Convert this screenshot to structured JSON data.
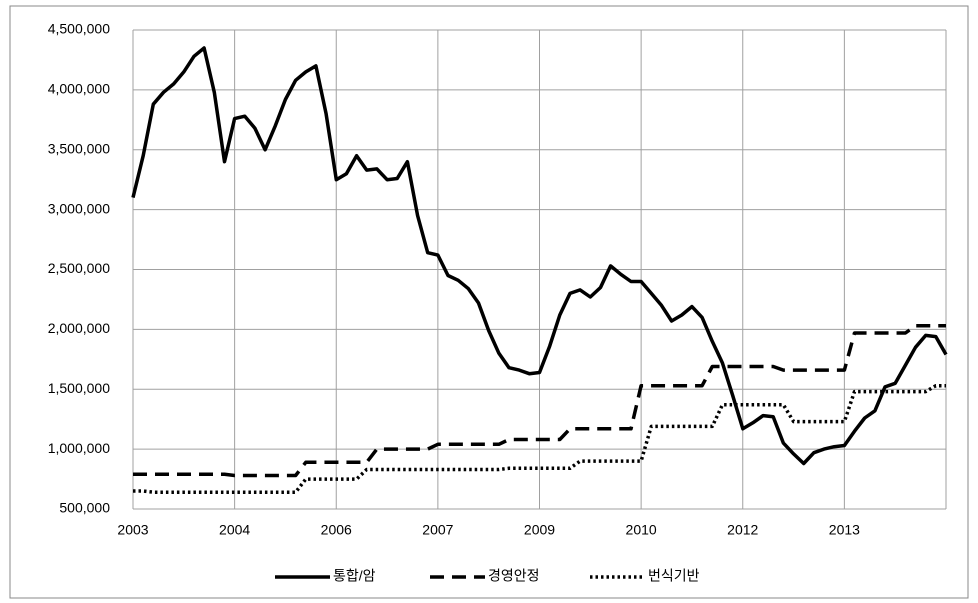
{
  "chart_data": {
    "type": "line",
    "categories": [
      "2003",
      null,
      null,
      null,
      null,
      null,
      null,
      null,
      null,
      null,
      "2004",
      null,
      null,
      null,
      null,
      null,
      null,
      null,
      null,
      null,
      "2006",
      null,
      null,
      null,
      null,
      null,
      null,
      null,
      null,
      null,
      "2007",
      null,
      null,
      null,
      null,
      null,
      null,
      null,
      null,
      null,
      "2009",
      null,
      null,
      null,
      null,
      null,
      null,
      null,
      null,
      null,
      "2010",
      null,
      null,
      null,
      null,
      null,
      null,
      null,
      null,
      null,
      "2012",
      null,
      null,
      null,
      null,
      null,
      null,
      null,
      null,
      null,
      "2013",
      null,
      null,
      null,
      null,
      null,
      null,
      null,
      null,
      null,
      null
    ],
    "series": [
      {
        "name": "통합/암",
        "color": "#000000",
        "dash": "solid",
        "values": [
          3100000,
          3450000,
          3880000,
          3980000,
          4050000,
          4150000,
          4280000,
          4350000,
          3980000,
          3400000,
          3760000,
          3780000,
          3680000,
          3500000,
          3700000,
          3920000,
          4080000,
          4150000,
          4200000,
          3800000,
          3250000,
          3300000,
          3450000,
          3330000,
          3340000,
          3250000,
          3260000,
          3400000,
          2950000,
          2640000,
          2620000,
          2450000,
          2410000,
          2340000,
          2220000,
          1990000,
          1800000,
          1680000,
          1660000,
          1630000,
          1640000,
          1860000,
          2120000,
          2300000,
          2330000,
          2270000,
          2350000,
          2530000,
          2460000,
          2400000,
          2400000,
          2300000,
          2200000,
          2070000,
          2120000,
          2190000,
          2100000,
          1900000,
          1720000,
          1450000,
          1170000,
          1220000,
          1280000,
          1270000,
          1050000,
          960000,
          880000,
          970000,
          1000000,
          1020000,
          1030000,
          1150000,
          1260000,
          1320000,
          1520000,
          1550000,
          1700000,
          1850000,
          1950000,
          1940000,
          1790000
        ]
      },
      {
        "name": "경영안정",
        "color": "#000000",
        "dash": "dashed",
        "values": [
          790000,
          790000,
          790000,
          790000,
          790000,
          790000,
          790000,
          790000,
          790000,
          790000,
          780000,
          780000,
          780000,
          780000,
          780000,
          780000,
          780000,
          890000,
          890000,
          890000,
          890000,
          890000,
          890000,
          890000,
          1000000,
          1000000,
          1000000,
          1000000,
          1000000,
          1000000,
          1040000,
          1040000,
          1040000,
          1040000,
          1040000,
          1040000,
          1040000,
          1080000,
          1080000,
          1080000,
          1080000,
          1080000,
          1080000,
          1170000,
          1170000,
          1170000,
          1170000,
          1170000,
          1170000,
          1170000,
          1530000,
          1530000,
          1530000,
          1530000,
          1530000,
          1530000,
          1530000,
          1690000,
          1690000,
          1690000,
          1690000,
          1690000,
          1690000,
          1690000,
          1660000,
          1660000,
          1660000,
          1660000,
          1660000,
          1660000,
          1660000,
          1970000,
          1970000,
          1970000,
          1970000,
          1970000,
          1970000,
          2030000,
          2030000,
          2030000,
          2030000
        ]
      },
      {
        "name": "번식기반",
        "color": "#000000",
        "dash": "dotted",
        "values": [
          650000,
          650000,
          640000,
          640000,
          640000,
          640000,
          640000,
          640000,
          640000,
          640000,
          640000,
          640000,
          640000,
          640000,
          640000,
          640000,
          640000,
          750000,
          750000,
          750000,
          750000,
          750000,
          750000,
          830000,
          830000,
          830000,
          830000,
          830000,
          830000,
          830000,
          830000,
          830000,
          830000,
          830000,
          830000,
          830000,
          830000,
          840000,
          840000,
          840000,
          840000,
          840000,
          840000,
          840000,
          900000,
          900000,
          900000,
          900000,
          900000,
          900000,
          900000,
          1190000,
          1190000,
          1190000,
          1190000,
          1190000,
          1190000,
          1190000,
          1370000,
          1370000,
          1370000,
          1370000,
          1370000,
          1370000,
          1370000,
          1230000,
          1230000,
          1230000,
          1230000,
          1230000,
          1230000,
          1480000,
          1480000,
          1480000,
          1480000,
          1480000,
          1480000,
          1480000,
          1480000,
          1530000,
          1530000
        ]
      }
    ],
    "ylim": [
      500000,
      4500000
    ],
    "yticks": [
      {
        "value": 500000,
        "label": "500,000"
      },
      {
        "value": 1000000,
        "label": "1,000,000"
      },
      {
        "value": 1500000,
        "label": "1,500,000"
      },
      {
        "value": 2000000,
        "label": "2,000,000"
      },
      {
        "value": 2500000,
        "label": "2,500,000"
      },
      {
        "value": 3000000,
        "label": "3,000,000"
      },
      {
        "value": 3500000,
        "label": "3,500,000"
      },
      {
        "value": 4000000,
        "label": "4,000,000"
      },
      {
        "value": 4500000,
        "label": "4,500,000"
      }
    ],
    "grid": true,
    "legend": "bottom"
  }
}
